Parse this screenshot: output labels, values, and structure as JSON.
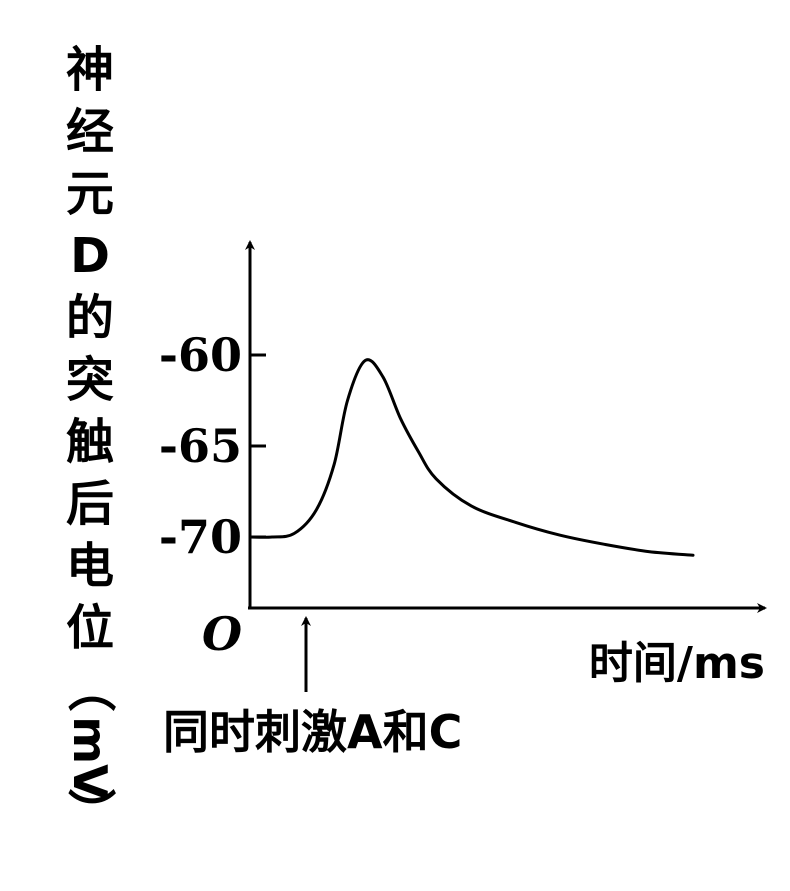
{
  "chart_data": {
    "type": "line",
    "ylabel_chars": [
      "神",
      "经",
      "元",
      "D",
      "的",
      "突",
      "触",
      "后",
      "电",
      "位",
      "（",
      "mV",
      "）"
    ],
    "xlabel": "时间/ms",
    "origin_label": "O",
    "y_ticks": [
      -70,
      -65,
      -60
    ],
    "y_tick_labels": [
      "-70",
      "-65",
      "-60"
    ],
    "stimulus_label": "同时刺激A和C",
    "series": [
      {
        "x": [
          0,
          0.5,
          1.0,
          1.5,
          1.9,
          2.2,
          2.6,
          3.0,
          3.4,
          3.8,
          4.2,
          5.0,
          6.0,
          7.0,
          8.0,
          9.0,
          10.0
        ],
        "y": [
          -70,
          -70,
          -69.8,
          -68.5,
          -66,
          -62.5,
          -60.3,
          -61.2,
          -63.5,
          -65.3,
          -66.8,
          -68.3,
          -69.2,
          -69.9,
          -70.4,
          -70.8,
          -71.0
        ]
      }
    ]
  }
}
